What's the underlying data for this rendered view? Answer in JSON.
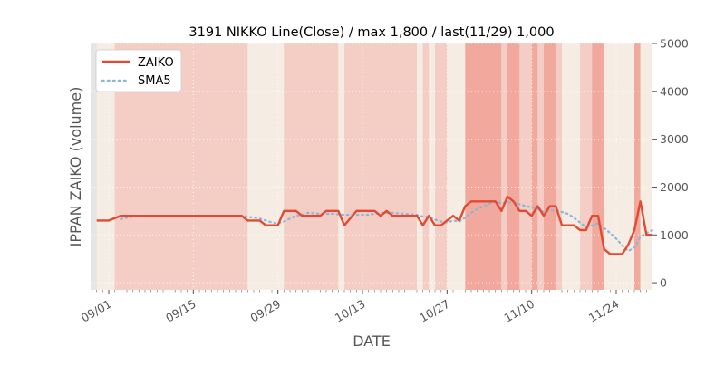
{
  "chart_data": {
    "type": "line",
    "title": "3191 NIKKO Line(Close) / max 1,800 / last(11/29) 1,000",
    "xlabel": "DATE",
    "ylabel": "IPPAN ZAIKO (volume)",
    "ylim": [
      -150,
      5000
    ],
    "yticks": [
      0,
      1000,
      2000,
      3000,
      4000,
      5000
    ],
    "ytick_labels": [
      "0",
      "1000",
      "2000",
      "3000",
      "4000",
      "5000"
    ],
    "y_axis_side": "right",
    "x_start": "2018-08-29",
    "x_end": "2018-11-30",
    "xtick_dates": [
      "2018-09-01",
      "2018-09-15",
      "2018-09-29",
      "2018-10-13",
      "2018-10-27",
      "2018-11-10",
      "2018-11-24"
    ],
    "xtick_labels": [
      "09/01",
      "09/15",
      "09/29",
      "10/13",
      "10/27",
      "11/10",
      "11/24"
    ],
    "legend_placement": "top-left",
    "grid": true,
    "colors": {
      "zaiko": "#e24a33",
      "sma5": "#8eb5d6",
      "plot_bg": "#e5e5e5",
      "grid": "#ffffff",
      "band_light": "#f5ece4",
      "band_mid": "#f4cdc4",
      "band_dark": "#f1a89d"
    },
    "series": [
      {
        "name": "ZAIKO",
        "style": "solid",
        "points": [
          [
            "2018-08-30",
            1300
          ],
          [
            "2018-08-31",
            1300
          ],
          [
            "2018-09-01",
            1300
          ],
          [
            "2018-09-02",
            1350
          ],
          [
            "2018-09-03",
            1400
          ],
          [
            "2018-09-04",
            1400
          ],
          [
            "2018-09-05",
            1400
          ],
          [
            "2018-09-06",
            1400
          ],
          [
            "2018-09-07",
            1400
          ],
          [
            "2018-09-08",
            1400
          ],
          [
            "2018-09-09",
            1400
          ],
          [
            "2018-09-10",
            1400
          ],
          [
            "2018-09-11",
            1400
          ],
          [
            "2018-09-12",
            1400
          ],
          [
            "2018-09-13",
            1400
          ],
          [
            "2018-09-14",
            1400
          ],
          [
            "2018-09-15",
            1400
          ],
          [
            "2018-09-16",
            1400
          ],
          [
            "2018-09-17",
            1400
          ],
          [
            "2018-09-18",
            1400
          ],
          [
            "2018-09-19",
            1400
          ],
          [
            "2018-09-20",
            1400
          ],
          [
            "2018-09-21",
            1400
          ],
          [
            "2018-09-22",
            1400
          ],
          [
            "2018-09-23",
            1400
          ],
          [
            "2018-09-24",
            1300
          ],
          [
            "2018-09-25",
            1300
          ],
          [
            "2018-09-26",
            1300
          ],
          [
            "2018-09-27",
            1200
          ],
          [
            "2018-09-28",
            1200
          ],
          [
            "2018-09-29",
            1200
          ],
          [
            "2018-09-30",
            1500
          ],
          [
            "2018-10-01",
            1500
          ],
          [
            "2018-10-02",
            1500
          ],
          [
            "2018-10-03",
            1400
          ],
          [
            "2018-10-04",
            1400
          ],
          [
            "2018-10-05",
            1400
          ],
          [
            "2018-10-06",
            1400
          ],
          [
            "2018-10-07",
            1500
          ],
          [
            "2018-10-08",
            1500
          ],
          [
            "2018-10-09",
            1500
          ],
          [
            "2018-10-10",
            1200
          ],
          [
            "2018-10-11",
            1350
          ],
          [
            "2018-10-12",
            1500
          ],
          [
            "2018-10-13",
            1500
          ],
          [
            "2018-10-14",
            1500
          ],
          [
            "2018-10-15",
            1500
          ],
          [
            "2018-10-16",
            1400
          ],
          [
            "2018-10-17",
            1500
          ],
          [
            "2018-10-18",
            1400
          ],
          [
            "2018-10-19",
            1400
          ],
          [
            "2018-10-20",
            1400
          ],
          [
            "2018-10-21",
            1400
          ],
          [
            "2018-10-22",
            1400
          ],
          [
            "2018-10-23",
            1200
          ],
          [
            "2018-10-24",
            1400
          ],
          [
            "2018-10-25",
            1200
          ],
          [
            "2018-10-26",
            1200
          ],
          [
            "2018-10-27",
            1300
          ],
          [
            "2018-10-28",
            1400
          ],
          [
            "2018-10-29",
            1300
          ],
          [
            "2018-10-30",
            1600
          ],
          [
            "2018-10-31",
            1700
          ],
          [
            "2018-11-01",
            1700
          ],
          [
            "2018-11-02",
            1700
          ],
          [
            "2018-11-03",
            1700
          ],
          [
            "2018-11-04",
            1700
          ],
          [
            "2018-11-05",
            1500
          ],
          [
            "2018-11-06",
            1800
          ],
          [
            "2018-11-07",
            1700
          ],
          [
            "2018-11-08",
            1500
          ],
          [
            "2018-11-09",
            1500
          ],
          [
            "2018-11-10",
            1400
          ],
          [
            "2018-11-11",
            1600
          ],
          [
            "2018-11-12",
            1400
          ],
          [
            "2018-11-13",
            1600
          ],
          [
            "2018-11-14",
            1600
          ],
          [
            "2018-11-15",
            1200
          ],
          [
            "2018-11-16",
            1200
          ],
          [
            "2018-11-17",
            1200
          ],
          [
            "2018-11-18",
            1100
          ],
          [
            "2018-11-19",
            1100
          ],
          [
            "2018-11-20",
            1400
          ],
          [
            "2018-11-21",
            1400
          ],
          [
            "2018-11-22",
            700
          ],
          [
            "2018-11-23",
            600
          ],
          [
            "2018-11-24",
            600
          ],
          [
            "2018-11-25",
            600
          ],
          [
            "2018-11-26",
            800
          ],
          [
            "2018-11-27",
            1100
          ],
          [
            "2018-11-28",
            1700
          ],
          [
            "2018-11-29",
            1000
          ],
          [
            "2018-11-30",
            1000
          ]
        ]
      },
      {
        "name": "SMA5",
        "style": "dotted",
        "points": [
          [
            "2018-09-03",
            1330
          ],
          [
            "2018-09-04",
            1360
          ],
          [
            "2018-09-05",
            1380
          ],
          [
            "2018-09-06",
            1390
          ],
          [
            "2018-09-08",
            1400
          ],
          [
            "2018-09-23",
            1400
          ],
          [
            "2018-09-24",
            1380
          ],
          [
            "2018-09-25",
            1360
          ],
          [
            "2018-09-26",
            1340
          ],
          [
            "2018-09-27",
            1300
          ],
          [
            "2018-09-28",
            1260
          ],
          [
            "2018-09-29",
            1240
          ],
          [
            "2018-09-30",
            1280
          ],
          [
            "2018-10-01",
            1340
          ],
          [
            "2018-10-02",
            1400
          ],
          [
            "2018-10-03",
            1420
          ],
          [
            "2018-10-04",
            1460
          ],
          [
            "2018-10-06",
            1440
          ],
          [
            "2018-10-08",
            1440
          ],
          [
            "2018-10-10",
            1420
          ],
          [
            "2018-10-11",
            1420
          ],
          [
            "2018-10-12",
            1420
          ],
          [
            "2018-10-14",
            1420
          ],
          [
            "2018-10-16",
            1460
          ],
          [
            "2018-10-18",
            1460
          ],
          [
            "2018-10-20",
            1440
          ],
          [
            "2018-10-22",
            1420
          ],
          [
            "2018-10-23",
            1380
          ],
          [
            "2018-10-24",
            1380
          ],
          [
            "2018-10-25",
            1320
          ],
          [
            "2018-10-26",
            1280
          ],
          [
            "2018-10-27",
            1260
          ],
          [
            "2018-10-28",
            1300
          ],
          [
            "2018-10-29",
            1280
          ],
          [
            "2018-10-30",
            1360
          ],
          [
            "2018-10-31",
            1460
          ],
          [
            "2018-11-01",
            1540
          ],
          [
            "2018-11-02",
            1600
          ],
          [
            "2018-11-04",
            1700
          ],
          [
            "2018-11-05",
            1660
          ],
          [
            "2018-11-06",
            1680
          ],
          [
            "2018-11-07",
            1680
          ],
          [
            "2018-11-08",
            1640
          ],
          [
            "2018-11-09",
            1600
          ],
          [
            "2018-11-10",
            1580
          ],
          [
            "2018-11-11",
            1540
          ],
          [
            "2018-11-12",
            1480
          ],
          [
            "2018-11-13",
            1500
          ],
          [
            "2018-11-14",
            1520
          ],
          [
            "2018-11-15",
            1480
          ],
          [
            "2018-11-16",
            1440
          ],
          [
            "2018-11-17",
            1360
          ],
          [
            "2018-11-18",
            1260
          ],
          [
            "2018-11-19",
            1160
          ],
          [
            "2018-11-20",
            1200
          ],
          [
            "2018-11-21",
            1240
          ],
          [
            "2018-11-22",
            1140
          ],
          [
            "2018-11-23",
            1040
          ],
          [
            "2018-11-24",
            920
          ],
          [
            "2018-11-25",
            780
          ],
          [
            "2018-11-26",
            660
          ],
          [
            "2018-11-27",
            740
          ],
          [
            "2018-11-28",
            960
          ],
          [
            "2018-11-29",
            1040
          ],
          [
            "2018-11-30",
            1100
          ]
        ]
      }
    ],
    "bands": [
      {
        "start": "2018-08-30",
        "end": "2018-08-31",
        "level": 1
      },
      {
        "start": "2018-08-31",
        "end": "2018-09-02",
        "level": 1
      },
      {
        "start": "2018-09-02",
        "end": "2018-09-24",
        "level": 2
      },
      {
        "start": "2018-09-24",
        "end": "2018-09-30",
        "level": 1
      },
      {
        "start": "2018-09-30",
        "end": "2018-10-09",
        "level": 2
      },
      {
        "start": "2018-10-09",
        "end": "2018-10-10",
        "level": 1
      },
      {
        "start": "2018-10-10",
        "end": "2018-10-22",
        "level": 2
      },
      {
        "start": "2018-10-22",
        "end": "2018-10-23",
        "level": 1
      },
      {
        "start": "2018-10-23",
        "end": "2018-10-24",
        "level": 2
      },
      {
        "start": "2018-10-24",
        "end": "2018-10-25",
        "level": 1
      },
      {
        "start": "2018-10-25",
        "end": "2018-10-27",
        "level": 2
      },
      {
        "start": "2018-10-27",
        "end": "2018-10-30",
        "level": 1
      },
      {
        "start": "2018-10-30",
        "end": "2018-11-05",
        "level": 3
      },
      {
        "start": "2018-11-05",
        "end": "2018-11-06",
        "level": 2
      },
      {
        "start": "2018-11-06",
        "end": "2018-11-08",
        "level": 3
      },
      {
        "start": "2018-11-08",
        "end": "2018-11-10",
        "level": 2
      },
      {
        "start": "2018-11-10",
        "end": "2018-11-11",
        "level": 3
      },
      {
        "start": "2018-11-11",
        "end": "2018-11-12",
        "level": 2
      },
      {
        "start": "2018-11-12",
        "end": "2018-11-14",
        "level": 3
      },
      {
        "start": "2018-11-14",
        "end": "2018-11-15",
        "level": 2
      },
      {
        "start": "2018-11-15",
        "end": "2018-11-18",
        "level": 1
      },
      {
        "start": "2018-11-18",
        "end": "2018-11-20",
        "level": 2
      },
      {
        "start": "2018-11-20",
        "end": "2018-11-22",
        "level": 3
      },
      {
        "start": "2018-11-22",
        "end": "2018-11-27",
        "level": 1
      },
      {
        "start": "2018-11-27",
        "end": "2018-11-28",
        "level": 3
      },
      {
        "start": "2018-11-28",
        "end": "2018-11-30",
        "level": 1
      }
    ]
  }
}
